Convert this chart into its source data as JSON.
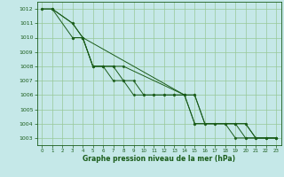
{
  "background_color": "#c5e8e8",
  "grid_color": "#98c898",
  "line_color": "#1a5c1a",
  "marker_color": "#1a5c1a",
  "xlabel": "Graphe pression niveau de la mer (hPa)",
  "xlabel_color": "#1a5c1a",
  "ylim": [
    1002.5,
    1012.5
  ],
  "xlim": [
    -0.5,
    23.5
  ],
  "yticks": [
    1003,
    1004,
    1005,
    1006,
    1007,
    1008,
    1009,
    1010,
    1011,
    1012
  ],
  "xticks": [
    0,
    1,
    2,
    3,
    4,
    5,
    6,
    7,
    8,
    9,
    10,
    11,
    12,
    13,
    14,
    15,
    16,
    17,
    18,
    19,
    20,
    21,
    22,
    23
  ],
  "series": [
    {
      "x": [
        0,
        1,
        3,
        4,
        5,
        6,
        7,
        8,
        9,
        10,
        11,
        12,
        13,
        14,
        15,
        16,
        17,
        18,
        19,
        20,
        21,
        22,
        23
      ],
      "y": [
        1012,
        1012,
        1010,
        1010,
        1008,
        1008,
        1008,
        1007,
        1007,
        1006,
        1006,
        1006,
        1006,
        1006,
        1006,
        1004,
        1004,
        1004,
        1004,
        1004,
        1003,
        1003,
        1003
      ]
    },
    {
      "x": [
        1,
        3,
        4,
        5,
        6,
        7,
        8,
        14,
        15,
        19,
        20,
        21,
        22,
        23
      ],
      "y": [
        1012,
        1011,
        1010,
        1008,
        1008,
        1008,
        1008,
        1006,
        1004,
        1004,
        1004,
        1003,
        1003,
        1003
      ]
    },
    {
      "x": [
        3,
        4,
        5,
        6,
        7,
        8,
        9,
        10,
        11,
        12,
        13,
        14,
        15,
        16,
        17,
        18,
        19,
        20,
        21,
        22,
        23
      ],
      "y": [
        1010,
        1010,
        1008,
        1008,
        1007,
        1007,
        1006,
        1006,
        1006,
        1006,
        1006,
        1006,
        1006,
        1004,
        1004,
        1004,
        1003,
        1003,
        1003,
        1003,
        1003
      ]
    },
    {
      "x": [
        0,
        1,
        3,
        4,
        14,
        15,
        19,
        20,
        23
      ],
      "y": [
        1012,
        1012,
        1011,
        1010,
        1006,
        1004,
        1004,
        1003,
        1003
      ]
    }
  ]
}
